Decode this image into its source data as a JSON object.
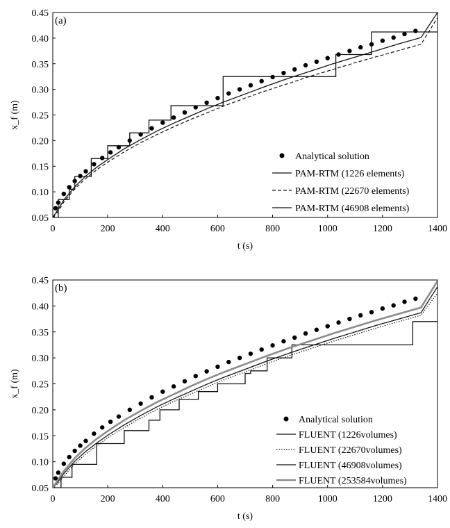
{
  "chart_data": [
    {
      "type": "line",
      "panel_label": "(a)",
      "xlabel": "t (s)",
      "ylabel": "x_f (m)",
      "xlim": [
        0,
        1400
      ],
      "ylim": [
        0.05,
        0.45
      ],
      "x_ticks": [
        "0",
        "200",
        "400",
        "600",
        "800",
        "1000",
        "1200",
        "1400"
      ],
      "y_ticks": [
        "0.05",
        "0.10",
        "0.15",
        "0.20",
        "0.25",
        "0.30",
        "0.35",
        "0.40",
        "0.45"
      ],
      "legend_position": "lower-right",
      "series": [
        {
          "name": "Analytical solution",
          "style": "markers",
          "x": [
            0,
            10,
            20,
            40,
            60,
            80,
            100,
            120,
            150,
            180,
            210,
            240,
            280,
            320,
            360,
            400,
            440,
            480,
            520,
            560,
            600,
            640,
            680,
            720,
            760,
            800,
            840,
            880,
            920,
            960,
            1000,
            1040,
            1080,
            1120,
            1160,
            1200,
            1240,
            1280,
            1320
          ],
          "y": [
            0.05,
            0.068,
            0.079,
            0.096,
            0.109,
            0.121,
            0.131,
            0.14,
            0.154,
            0.166,
            0.177,
            0.187,
            0.2,
            0.212,
            0.224,
            0.235,
            0.245,
            0.255,
            0.265,
            0.274,
            0.283,
            0.292,
            0.3,
            0.308,
            0.316,
            0.324,
            0.332,
            0.339,
            0.347,
            0.354,
            0.361,
            0.368,
            0.375,
            0.382,
            0.388,
            0.395,
            0.401,
            0.408,
            0.414
          ]
        },
        {
          "name": "PAM-RTM (1226 elements)",
          "style": "solid",
          "x": [
            0,
            20,
            20,
            60,
            60,
            80,
            80,
            140,
            140,
            200,
            200,
            280,
            280,
            350,
            350,
            430,
            430,
            620,
            620,
            1030,
            1030,
            1160,
            1160,
            1400
          ],
          "y": [
            0.05,
            0.05,
            0.085,
            0.085,
            0.105,
            0.105,
            0.13,
            0.13,
            0.165,
            0.165,
            0.19,
            0.19,
            0.215,
            0.215,
            0.24,
            0.24,
            0.268,
            0.268,
            0.325,
            0.325,
            0.368,
            0.368,
            0.412,
            0.412
          ]
        },
        {
          "name": "PAM-RTM (22670 elements)",
          "style": "dashed",
          "x": [
            0,
            20,
            40,
            80,
            120,
            160,
            200,
            260,
            320,
            380,
            440,
            500,
            560,
            620,
            700,
            780,
            860,
            940,
            1020,
            1100,
            1180,
            1260,
            1340,
            1400
          ],
          "y": [
            0.05,
            0.062,
            0.08,
            0.106,
            0.126,
            0.143,
            0.158,
            0.178,
            0.196,
            0.212,
            0.227,
            0.241,
            0.254,
            0.267,
            0.283,
            0.298,
            0.312,
            0.326,
            0.339,
            0.352,
            0.364,
            0.376,
            0.388,
            0.44
          ]
        },
        {
          "name": "PAM-RTM (46908 elements)",
          "style": "solid",
          "x": [
            0,
            20,
            40,
            80,
            120,
            160,
            200,
            260,
            320,
            380,
            440,
            500,
            560,
            620,
            700,
            780,
            860,
            940,
            1020,
            1100,
            1180,
            1260,
            1340,
            1400
          ],
          "y": [
            0.05,
            0.066,
            0.084,
            0.11,
            0.131,
            0.148,
            0.163,
            0.184,
            0.202,
            0.219,
            0.234,
            0.248,
            0.262,
            0.275,
            0.291,
            0.307,
            0.322,
            0.336,
            0.35,
            0.363,
            0.376,
            0.389,
            0.401,
            0.45
          ]
        }
      ]
    },
    {
      "type": "line",
      "panel_label": "(b)",
      "xlabel": "t (s)",
      "ylabel": "x_f (m)",
      "xlim": [
        0,
        1400
      ],
      "ylim": [
        0.05,
        0.45
      ],
      "x_ticks": [
        "0",
        "200",
        "400",
        "600",
        "800",
        "1000",
        "1200",
        "1400"
      ],
      "y_ticks": [
        "0.05",
        "0.10",
        "0.15",
        "0.20",
        "0.25",
        "0.30",
        "0.35",
        "0.40",
        "0.45"
      ],
      "legend_position": "lower-right",
      "series": [
        {
          "name": "Analytical solution",
          "style": "markers",
          "x": [
            0,
            10,
            20,
            40,
            60,
            80,
            100,
            120,
            150,
            180,
            210,
            240,
            280,
            320,
            360,
            400,
            440,
            480,
            520,
            560,
            600,
            640,
            680,
            720,
            760,
            800,
            840,
            880,
            920,
            960,
            1000,
            1040,
            1080,
            1120,
            1160,
            1200,
            1240,
            1280,
            1320
          ],
          "y": [
            0.05,
            0.068,
            0.079,
            0.096,
            0.109,
            0.121,
            0.131,
            0.14,
            0.154,
            0.166,
            0.177,
            0.187,
            0.2,
            0.212,
            0.224,
            0.235,
            0.245,
            0.255,
            0.265,
            0.274,
            0.283,
            0.292,
            0.3,
            0.308,
            0.316,
            0.324,
            0.332,
            0.339,
            0.347,
            0.354,
            0.361,
            0.368,
            0.375,
            0.382,
            0.388,
            0.395,
            0.401,
            0.408,
            0.414
          ]
        },
        {
          "name": "FLUENT (1226volumes)",
          "style": "solid",
          "x": [
            0,
            30,
            30,
            70,
            70,
            160,
            160,
            260,
            260,
            350,
            350,
            390,
            390,
            460,
            460,
            530,
            530,
            600,
            600,
            700,
            700,
            720,
            720,
            780,
            780,
            870,
            870,
            1000,
            1000,
            1100,
            1100,
            1310,
            1310,
            1400
          ],
          "y": [
            0.05,
            0.05,
            0.07,
            0.07,
            0.095,
            0.095,
            0.135,
            0.135,
            0.16,
            0.16,
            0.18,
            0.18,
            0.2,
            0.2,
            0.22,
            0.22,
            0.235,
            0.235,
            0.25,
            0.25,
            0.27,
            0.27,
            0.275,
            0.275,
            0.3,
            0.3,
            0.325,
            0.325,
            0.325,
            0.325,
            0.325,
            0.325,
            0.37,
            0.37
          ]
        },
        {
          "name": "FLUENT (22670volumes)",
          "style": "dotted",
          "x": [
            0,
            20,
            40,
            80,
            120,
            160,
            200,
            260,
            320,
            380,
            440,
            500,
            560,
            620,
            700,
            780,
            860,
            940,
            1020,
            1100,
            1180,
            1260,
            1340,
            1400
          ],
          "y": [
            0.05,
            0.058,
            0.072,
            0.096,
            0.115,
            0.131,
            0.146,
            0.166,
            0.184,
            0.201,
            0.216,
            0.23,
            0.244,
            0.257,
            0.273,
            0.289,
            0.304,
            0.318,
            0.332,
            0.345,
            0.358,
            0.37,
            0.382,
            0.425
          ]
        },
        {
          "name": "FLUENT (46908volumes)",
          "style": "solid",
          "x": [
            0,
            20,
            40,
            80,
            120,
            160,
            200,
            260,
            320,
            380,
            440,
            500,
            560,
            620,
            700,
            780,
            860,
            940,
            1020,
            1100,
            1180,
            1260,
            1340,
            1400
          ],
          "y": [
            0.05,
            0.062,
            0.077,
            0.101,
            0.12,
            0.136,
            0.151,
            0.171,
            0.189,
            0.206,
            0.221,
            0.235,
            0.249,
            0.262,
            0.278,
            0.294,
            0.309,
            0.323,
            0.337,
            0.35,
            0.363,
            0.375,
            0.387,
            0.437
          ]
        },
        {
          "name": "FLUENT (253584volumes)",
          "style": "gray",
          "x": [
            0,
            20,
            40,
            80,
            120,
            160,
            200,
            260,
            320,
            380,
            440,
            500,
            560,
            620,
            700,
            780,
            860,
            940,
            1020,
            1100,
            1180,
            1260,
            1340,
            1400
          ],
          "y": [
            0.05,
            0.066,
            0.082,
            0.107,
            0.127,
            0.144,
            0.159,
            0.18,
            0.198,
            0.215,
            0.23,
            0.245,
            0.259,
            0.272,
            0.288,
            0.304,
            0.319,
            0.333,
            0.347,
            0.36,
            0.373,
            0.385,
            0.397,
            0.448
          ]
        }
      ]
    }
  ]
}
